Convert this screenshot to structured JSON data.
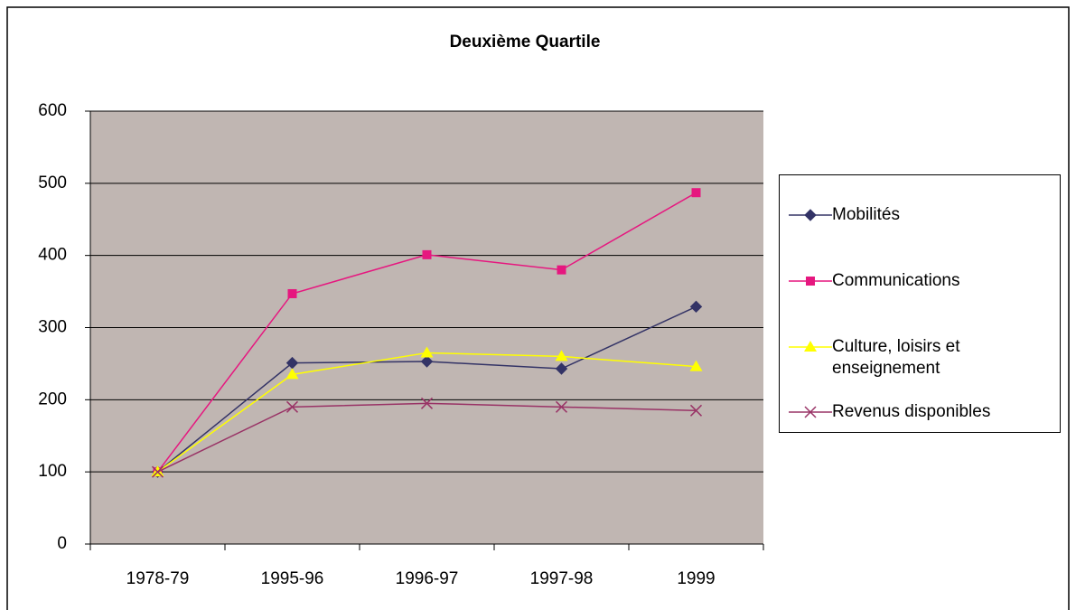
{
  "chart_data": {
    "type": "line",
    "title": "Deuxième Quartile",
    "categories": [
      "1978-79",
      "1995-96",
      "1996-97",
      "1997-98",
      "1999"
    ],
    "series": [
      {
        "name": "Mobilités",
        "color": "#333366",
        "marker": "diamond",
        "values": [
          100,
          251,
          253,
          243,
          329
        ]
      },
      {
        "name": "Communications",
        "color": "#e6177f",
        "marker": "square",
        "values": [
          100,
          347,
          401,
          380,
          487
        ]
      },
      {
        "name": "Culture, loisirs et enseignement",
        "color": "#ffff00",
        "marker": "triangle",
        "values": [
          100,
          235,
          265,
          260,
          246
        ]
      },
      {
        "name": "Revenus disponibles",
        "color": "#993366",
        "marker": "x",
        "values": [
          100,
          190,
          195,
          190,
          185
        ]
      }
    ],
    "ylim": [
      0,
      600
    ],
    "yticks": [
      0,
      100,
      200,
      300,
      400,
      500,
      600
    ],
    "grid": true,
    "legend": "right"
  }
}
